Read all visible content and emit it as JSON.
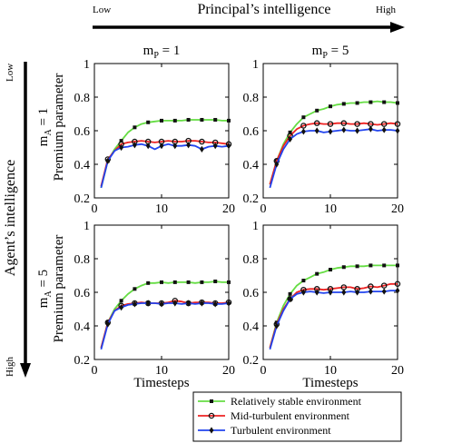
{
  "figure": {
    "top_arrow": {
      "label": "Principal’s intelligence",
      "low": "Low",
      "high": "High"
    },
    "left_arrow": {
      "label": "Agent’s intelligence",
      "low": "Low",
      "high": "High"
    },
    "column_headers": [
      {
        "base": "m",
        "sub": "P",
        "rest": " = 1"
      },
      {
        "base": "m",
        "sub": "P",
        "rest": " = 5"
      }
    ],
    "row_headers": [
      {
        "base": "m",
        "sub": "A",
        "rest": " = 1"
      },
      {
        "base": "m",
        "sub": "A",
        "rest": " = 5"
      }
    ],
    "ylabel": "Premium parameter",
    "xlabel": "Timesteps",
    "colors": {
      "stable": "#66dd44",
      "mid": "#ee2222",
      "turbulent": "#2244ee",
      "marker": "#111111"
    },
    "legend": [
      {
        "name": "Relatively stable environment",
        "marker": "square"
      },
      {
        "name": "Mid-turbulent environment",
        "marker": "circle"
      },
      {
        "name": "Turbulent environment",
        "marker": "diamond"
      }
    ]
  },
  "chart_data": [
    {
      "type": "line",
      "panel": "mA1-mP1",
      "x": [
        1,
        2,
        3,
        4,
        5,
        6,
        7,
        8,
        9,
        10,
        11,
        12,
        13,
        14,
        15,
        16,
        17,
        18,
        19,
        20
      ],
      "xlim": [
        0,
        20
      ],
      "ylim": [
        0.2,
        1.0
      ],
      "xticks": [
        0,
        10,
        20
      ],
      "yticks": [
        0.2,
        0.4,
        0.6,
        0.8,
        1
      ],
      "series": [
        {
          "name": "Relatively stable environment",
          "values": [
            0.26,
            0.42,
            0.49,
            0.54,
            0.59,
            0.62,
            0.64,
            0.65,
            0.655,
            0.66,
            0.66,
            0.66,
            0.66,
            0.665,
            0.665,
            0.665,
            0.665,
            0.665,
            0.66,
            0.66
          ]
        },
        {
          "name": "Mid-turbulent environment",
          "values": [
            0.27,
            0.43,
            0.48,
            0.52,
            0.53,
            0.535,
            0.54,
            0.535,
            0.53,
            0.535,
            0.54,
            0.535,
            0.535,
            0.54,
            0.54,
            0.535,
            0.53,
            0.53,
            0.525,
            0.52
          ]
        },
        {
          "name": "Turbulent environment",
          "values": [
            0.26,
            0.42,
            0.48,
            0.5,
            0.505,
            0.515,
            0.52,
            0.51,
            0.49,
            0.51,
            0.52,
            0.51,
            0.51,
            0.515,
            0.51,
            0.49,
            0.505,
            0.51,
            0.505,
            0.51
          ]
        }
      ]
    },
    {
      "type": "line",
      "panel": "mA1-mP5",
      "x": [
        1,
        2,
        3,
        4,
        5,
        6,
        7,
        8,
        9,
        10,
        11,
        12,
        13,
        14,
        15,
        16,
        17,
        18,
        19,
        20
      ],
      "xlim": [
        0,
        20
      ],
      "ylim": [
        0.2,
        1.0
      ],
      "xticks": [
        0,
        10,
        20
      ],
      "yticks": [
        0.2,
        0.4,
        0.6,
        0.8,
        1
      ],
      "series": [
        {
          "name": "Relatively stable environment",
          "values": [
            0.28,
            0.42,
            0.52,
            0.59,
            0.64,
            0.68,
            0.7,
            0.72,
            0.73,
            0.745,
            0.755,
            0.76,
            0.765,
            0.765,
            0.77,
            0.77,
            0.775,
            0.77,
            0.77,
            0.765
          ]
        },
        {
          "name": "Mid-turbulent environment",
          "values": [
            0.28,
            0.42,
            0.51,
            0.57,
            0.61,
            0.63,
            0.64,
            0.645,
            0.64,
            0.64,
            0.645,
            0.645,
            0.64,
            0.64,
            0.645,
            0.64,
            0.635,
            0.64,
            0.645,
            0.64
          ]
        },
        {
          "name": "Turbulent environment",
          "values": [
            0.26,
            0.4,
            0.49,
            0.55,
            0.58,
            0.595,
            0.6,
            0.6,
            0.59,
            0.595,
            0.6,
            0.605,
            0.6,
            0.6,
            0.605,
            0.61,
            0.6,
            0.605,
            0.605,
            0.6
          ]
        }
      ]
    },
    {
      "type": "line",
      "panel": "mA5-mP1",
      "x": [
        1,
        2,
        3,
        4,
        5,
        6,
        7,
        8,
        9,
        10,
        11,
        12,
        13,
        14,
        15,
        16,
        17,
        18,
        19,
        20
      ],
      "xlim": [
        0,
        20
      ],
      "ylim": [
        0.2,
        1.0
      ],
      "xticks": [
        0,
        10,
        20
      ],
      "yticks": [
        0.2,
        0.4,
        0.6,
        0.8,
        1
      ],
      "series": [
        {
          "name": "Relatively stable environment",
          "values": [
            0.27,
            0.42,
            0.5,
            0.55,
            0.59,
            0.62,
            0.64,
            0.655,
            0.655,
            0.66,
            0.655,
            0.66,
            0.66,
            0.66,
            0.655,
            0.66,
            0.66,
            0.665,
            0.66,
            0.66
          ]
        },
        {
          "name": "Mid-turbulent environment",
          "values": [
            0.27,
            0.42,
            0.49,
            0.52,
            0.53,
            0.535,
            0.54,
            0.535,
            0.535,
            0.535,
            0.54,
            0.55,
            0.545,
            0.535,
            0.54,
            0.54,
            0.54,
            0.535,
            0.535,
            0.54
          ]
        },
        {
          "name": "Turbulent environment",
          "values": [
            0.26,
            0.41,
            0.49,
            0.51,
            0.525,
            0.53,
            0.535,
            0.535,
            0.535,
            0.53,
            0.535,
            0.535,
            0.53,
            0.535,
            0.53,
            0.535,
            0.535,
            0.53,
            0.53,
            0.535
          ]
        }
      ]
    },
    {
      "type": "line",
      "panel": "mA5-mP5",
      "x": [
        1,
        2,
        3,
        4,
        5,
        6,
        7,
        8,
        9,
        10,
        11,
        12,
        13,
        14,
        15,
        16,
        17,
        18,
        19,
        20
      ],
      "xlim": [
        0,
        20
      ],
      "ylim": [
        0.2,
        1.0
      ],
      "xticks": [
        0,
        10,
        20
      ],
      "yticks": [
        0.2,
        0.4,
        0.6,
        0.8,
        1
      ],
      "series": [
        {
          "name": "Relatively stable environment",
          "values": [
            0.27,
            0.42,
            0.52,
            0.59,
            0.64,
            0.67,
            0.69,
            0.71,
            0.72,
            0.735,
            0.745,
            0.75,
            0.755,
            0.755,
            0.755,
            0.76,
            0.76,
            0.76,
            0.76,
            0.76
          ]
        },
        {
          "name": "Mid-turbulent environment",
          "values": [
            0.27,
            0.41,
            0.5,
            0.56,
            0.6,
            0.615,
            0.62,
            0.62,
            0.615,
            0.62,
            0.625,
            0.63,
            0.63,
            0.62,
            0.625,
            0.635,
            0.63,
            0.64,
            0.65,
            0.65
          ]
        },
        {
          "name": "Turbulent environment",
          "values": [
            0.26,
            0.4,
            0.49,
            0.56,
            0.59,
            0.6,
            0.605,
            0.6,
            0.595,
            0.6,
            0.6,
            0.6,
            0.605,
            0.6,
            0.6,
            0.605,
            0.605,
            0.605,
            0.61,
            0.61
          ]
        }
      ]
    }
  ]
}
